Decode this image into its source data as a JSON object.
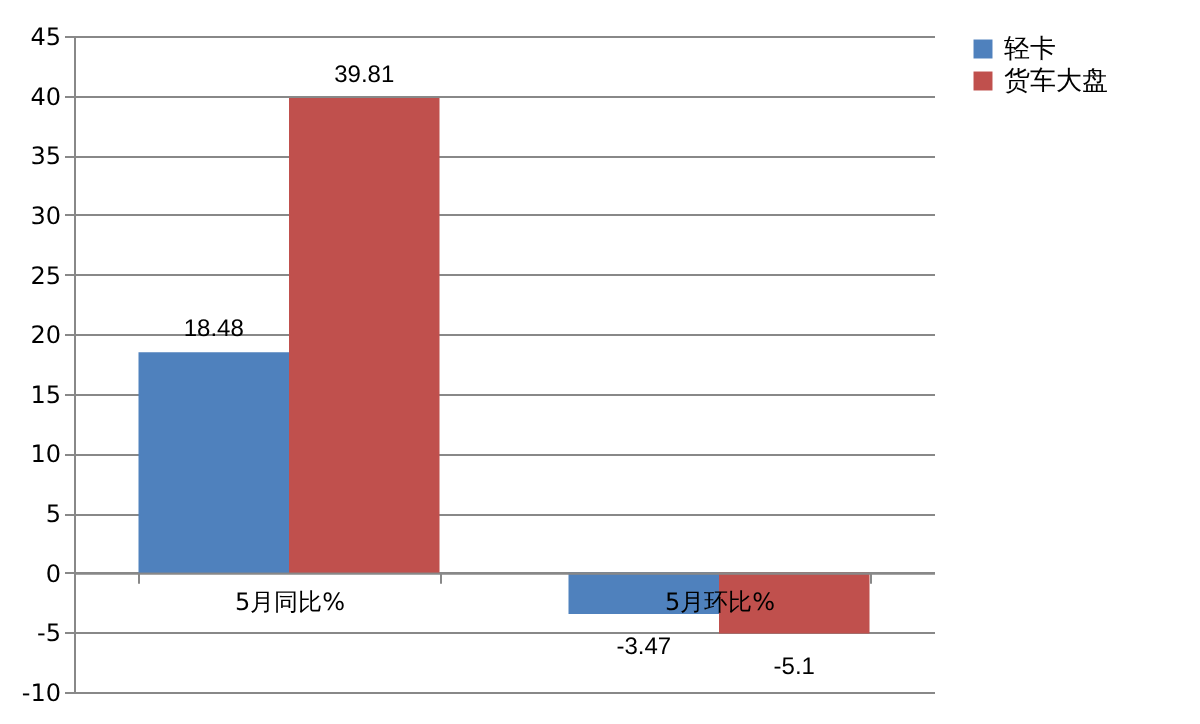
{
  "chart_data": {
    "type": "bar",
    "categories": [
      "5月同比%",
      "5月环比%"
    ],
    "series": [
      {
        "name": "轻卡",
        "color": "#4f81bd",
        "values": [
          18.48,
          -3.47
        ]
      },
      {
        "name": "货车大盘",
        "color": "#c0504d",
        "values": [
          39.81,
          -5.1
        ]
      }
    ],
    "ylim": [
      -10,
      45
    ],
    "yticks": [
      -10,
      -5,
      0,
      5,
      10,
      15,
      20,
      25,
      30,
      35,
      40,
      45
    ],
    "grid": "y",
    "legend": "right",
    "data_labels": true
  }
}
